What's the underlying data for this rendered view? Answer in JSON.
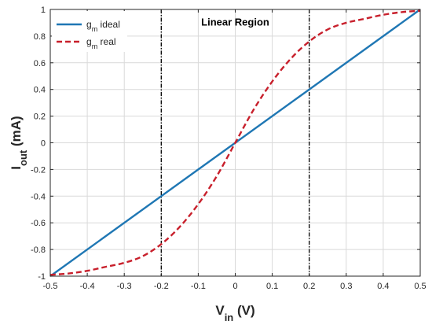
{
  "chart_data": {
    "type": "line",
    "title": "",
    "xlabel": {
      "main": "V",
      "sub": "in",
      "unit": " (V)"
    },
    "ylabel": {
      "main": "I",
      "sub": "out",
      "unit": " (mA)"
    },
    "xlim": [
      -0.5,
      0.5
    ],
    "ylim": [
      -1,
      1
    ],
    "xticks": [
      -0.5,
      -0.4,
      -0.3,
      -0.2,
      -0.1,
      0,
      0.1,
      0.2,
      0.3,
      0.4,
      0.5
    ],
    "xtick_labels": [
      "-0.5",
      "-0.4",
      "-0.3",
      "-0.2",
      "-0.1",
      "0",
      "0.1",
      "0.2",
      "0.3",
      "0.4",
      "0.5"
    ],
    "yticks": [
      -1,
      -0.8,
      -0.6,
      -0.4,
      -0.2,
      0,
      0.2,
      0.4,
      0.6,
      0.8,
      1
    ],
    "ytick_labels": [
      "-1",
      "-0.8",
      "-0.6",
      "-0.4",
      "-0.2",
      "0",
      "0.2",
      "0.4",
      "0.6",
      "0.8",
      "1"
    ],
    "grid": true,
    "legend_position": "top-left",
    "series": [
      {
        "name": {
          "main": "g",
          "sub": "m",
          "suffix": " ideal"
        },
        "color": "#1f77b4",
        "style": "solid",
        "x": [
          -0.5,
          0.5
        ],
        "y": [
          -1,
          1
        ]
      },
      {
        "name": {
          "main": "g",
          "sub": "m",
          "suffix": " real"
        },
        "color": "#c8202c",
        "style": "dashed",
        "x": [
          -0.5,
          -0.45,
          -0.4,
          -0.35,
          -0.3,
          -0.25,
          -0.2,
          -0.15,
          -0.1,
          -0.05,
          0,
          0.05,
          0.1,
          0.15,
          0.2,
          0.25,
          0.3,
          0.35,
          0.4,
          0.45,
          0.5
        ],
        "y": [
          -0.99,
          -0.98,
          -0.96,
          -0.93,
          -0.9,
          -0.85,
          -0.76,
          -0.63,
          -0.46,
          -0.25,
          0,
          0.25,
          0.46,
          0.63,
          0.76,
          0.85,
          0.9,
          0.93,
          0.96,
          0.98,
          0.99
        ]
      }
    ],
    "vertical_lines": [
      {
        "x": -0.2,
        "color": "#000000",
        "style": "dashdot"
      },
      {
        "x": 0.2,
        "color": "#000000",
        "style": "dashdot"
      }
    ],
    "annotations": [
      {
        "text": "Linear Region",
        "x": 0,
        "y": 0.88
      }
    ]
  }
}
